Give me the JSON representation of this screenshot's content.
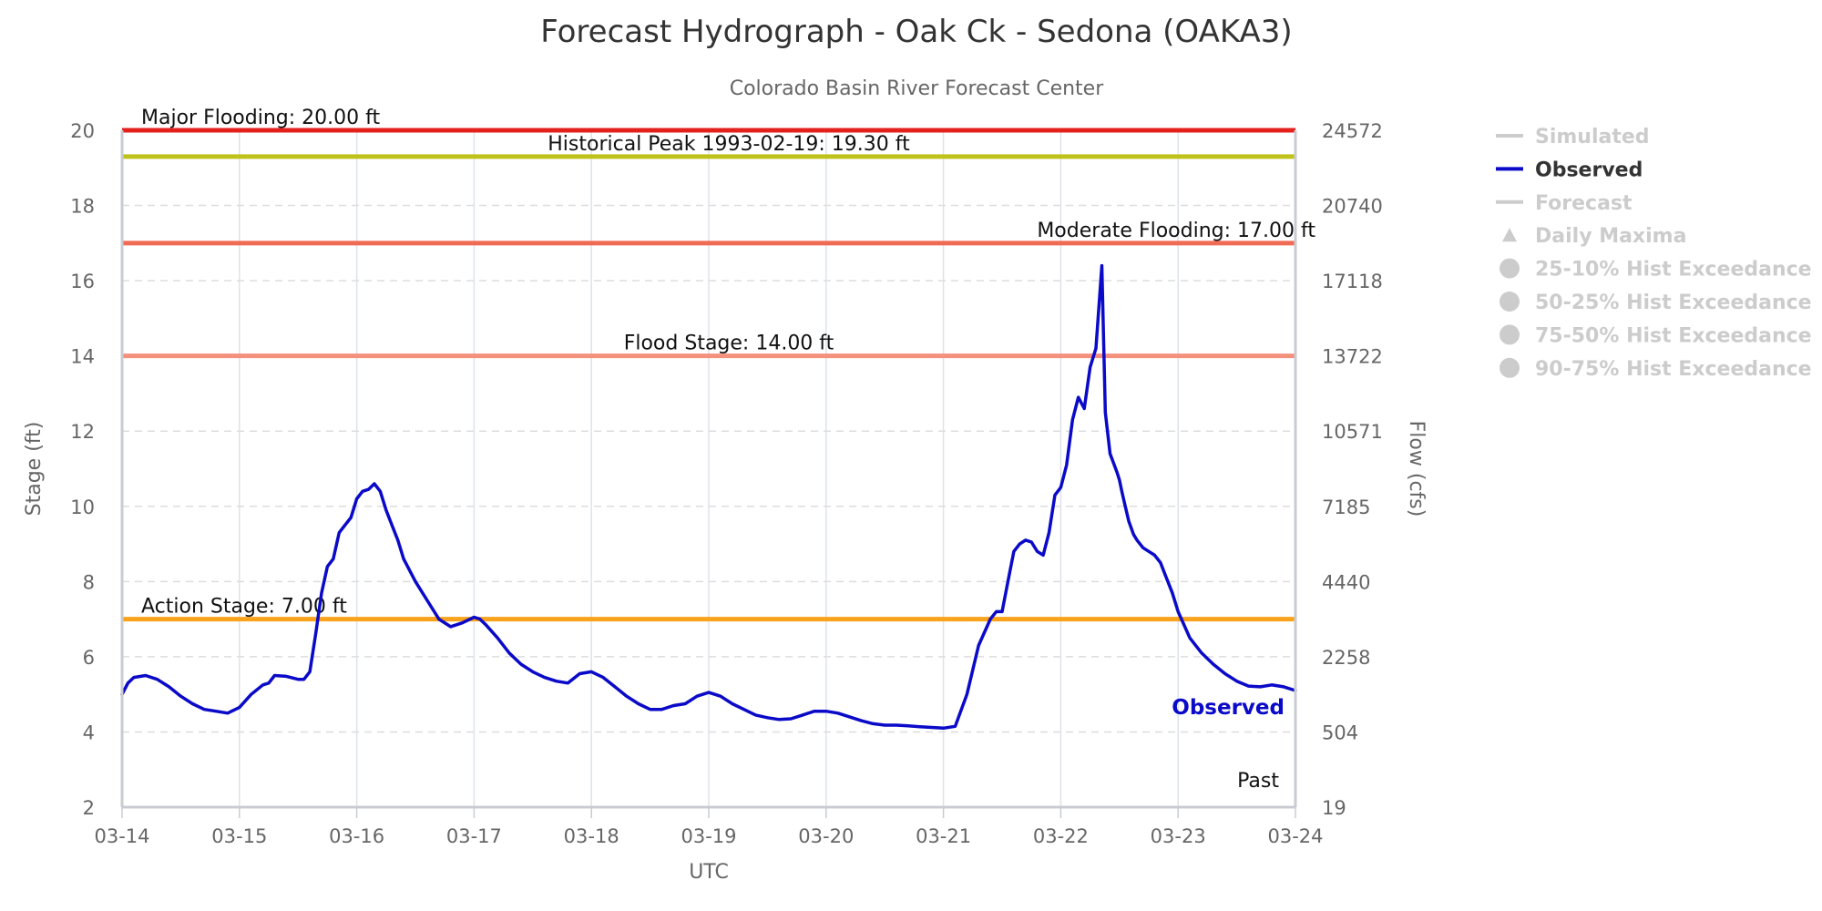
{
  "chart_data": {
    "type": "line",
    "title": "Forecast Hydrograph - Oak Ck - Sedona (OAKA3)",
    "subtitle": "Colorado Basin River Forecast Center",
    "xlabel": "UTC",
    "ylabel": "Stage (ft)",
    "y2label": "Flow (cfs)",
    "xlim": [
      "03-14",
      "03-24"
    ],
    "x_ticks": [
      "03-14",
      "03-15",
      "03-16",
      "03-17",
      "03-18",
      "03-19",
      "03-20",
      "03-21",
      "03-22",
      "03-23",
      "03-24"
    ],
    "ylim": [
      2,
      20
    ],
    "y_ticks": [
      2,
      4,
      6,
      8,
      10,
      12,
      14,
      16,
      18,
      20
    ],
    "y2_ticks": [
      {
        "stage": 2,
        "label": "19"
      },
      {
        "stage": 4,
        "label": "504"
      },
      {
        "stage": 6,
        "label": "2258"
      },
      {
        "stage": 8,
        "label": "4440"
      },
      {
        "stage": 10,
        "label": "7185"
      },
      {
        "stage": 12,
        "label": "10571"
      },
      {
        "stage": 14,
        "label": "13722"
      },
      {
        "stage": 16,
        "label": "17118"
      },
      {
        "stage": 18,
        "label": "20740"
      },
      {
        "stage": 20,
        "label": "24572"
      }
    ],
    "grid": true,
    "legend_position": "right",
    "thresholds": [
      {
        "label": "Major Flooding: 20.00 ft",
        "value": 20.0,
        "color": "#e3201c",
        "label_pos": "left"
      },
      {
        "label": "Historical Peak 1993-02-19: 19.30 ft",
        "value": 19.3,
        "color": "#bfc21b",
        "label_pos": "center"
      },
      {
        "label": "Moderate Flooding: 17.00 ft",
        "value": 17.0,
        "color": "#f06b55",
        "label_pos": "right"
      },
      {
        "label": "Flood Stage: 14.00 ft",
        "value": 14.0,
        "color": "#f4917d",
        "label_pos": "center"
      },
      {
        "label": "Action Stage: 7.00 ft",
        "value": 7.0,
        "color": "#f9a21b",
        "label_pos": "left"
      }
    ],
    "series": [
      {
        "name": "Observed",
        "color": "#0a0ac8",
        "x_days": [
          0,
          0.05,
          0.1,
          0.2,
          0.3,
          0.4,
          0.5,
          0.6,
          0.7,
          0.8,
          0.9,
          1.0,
          1.1,
          1.2,
          1.25,
          1.3,
          1.4,
          1.5,
          1.55,
          1.6,
          1.65,
          1.7,
          1.75,
          1.8,
          1.85,
          1.9,
          1.95,
          2.0,
          2.05,
          2.1,
          2.15,
          2.2,
          2.25,
          2.3,
          2.35,
          2.4,
          2.5,
          2.6,
          2.7,
          2.8,
          2.9,
          3.0,
          3.05,
          3.1,
          3.2,
          3.3,
          3.4,
          3.5,
          3.6,
          3.7,
          3.8,
          3.9,
          4.0,
          4.1,
          4.2,
          4.3,
          4.4,
          4.5,
          4.6,
          4.7,
          4.8,
          4.9,
          5.0,
          5.1,
          5.2,
          5.3,
          5.4,
          5.5,
          5.6,
          5.7,
          5.8,
          5.9,
          6.0,
          6.1,
          6.2,
          6.3,
          6.4,
          6.5,
          6.6,
          6.7,
          6.8,
          6.9,
          7.0,
          7.1,
          7.2,
          7.3,
          7.4,
          7.45,
          7.5,
          7.55,
          7.6,
          7.65,
          7.7,
          7.75,
          7.8,
          7.85,
          7.9,
          7.95,
          8.0,
          8.05,
          8.1,
          8.15,
          8.2,
          8.25,
          8.3,
          8.35,
          8.38,
          8.42,
          8.48,
          8.5,
          8.52,
          8.55,
          8.58,
          8.62,
          8.65,
          8.7,
          8.75,
          8.8,
          8.85,
          8.9,
          8.95,
          9.0,
          9.1,
          9.2,
          9.3,
          9.4,
          9.5,
          9.6,
          9.7,
          9.8,
          9.9,
          10.0
        ],
        "y": [
          5.0,
          5.3,
          5.45,
          5.5,
          5.4,
          5.2,
          4.95,
          4.75,
          4.6,
          4.55,
          4.5,
          4.65,
          5.0,
          5.25,
          5.3,
          5.5,
          5.48,
          5.4,
          5.4,
          5.6,
          6.6,
          7.7,
          8.4,
          8.6,
          9.3,
          9.5,
          9.7,
          10.2,
          10.4,
          10.45,
          10.6,
          10.4,
          9.9,
          9.5,
          9.1,
          8.6,
          8.0,
          7.5,
          7.0,
          6.8,
          6.9,
          7.05,
          7.0,
          6.85,
          6.5,
          6.1,
          5.8,
          5.6,
          5.45,
          5.35,
          5.3,
          5.55,
          5.6,
          5.45,
          5.2,
          4.95,
          4.75,
          4.6,
          4.6,
          4.7,
          4.75,
          4.95,
          5.05,
          4.95,
          4.75,
          4.6,
          4.45,
          4.38,
          4.33,
          4.35,
          4.45,
          4.55,
          4.55,
          4.5,
          4.4,
          4.3,
          4.22,
          4.18,
          4.18,
          4.16,
          4.14,
          4.12,
          4.1,
          4.15,
          5.0,
          6.3,
          7.0,
          7.2,
          7.2,
          8.0,
          8.8,
          9.0,
          9.1,
          9.05,
          8.8,
          8.7,
          9.3,
          10.3,
          10.5,
          11.1,
          12.3,
          12.9,
          12.6,
          13.7,
          14.2,
          16.4,
          12.5,
          11.4,
          10.9,
          10.7,
          10.4,
          10.0,
          9.6,
          9.25,
          9.1,
          8.9,
          8.8,
          8.7,
          8.5,
          8.1,
          7.7,
          7.2,
          6.5,
          6.1,
          5.8,
          5.55,
          5.35,
          5.22,
          5.2,
          5.25,
          5.2,
          5.1
        ]
      }
    ],
    "series_label": "Observed",
    "annotation": "Past",
    "legend": [
      {
        "label": "Simulated",
        "symbol": "line",
        "active": false,
        "color": "#cccccc"
      },
      {
        "label": "Observed",
        "symbol": "line",
        "active": true,
        "color": "#0a0ac8"
      },
      {
        "label": "Forecast",
        "symbol": "line",
        "active": false,
        "color": "#cccccc"
      },
      {
        "label": "Daily Maxima",
        "symbol": "triangle",
        "active": false,
        "color": "#cccccc"
      },
      {
        "label": "25-10% Hist Exceedance",
        "symbol": "circle",
        "active": false,
        "color": "#cccccc"
      },
      {
        "label": "50-25% Hist Exceedance",
        "symbol": "circle",
        "active": false,
        "color": "#cccccc"
      },
      {
        "label": "75-50% Hist Exceedance",
        "symbol": "circle",
        "active": false,
        "color": "#cccccc"
      },
      {
        "label": "90-75% Hist Exceedance",
        "symbol": "circle",
        "active": false,
        "color": "#cccccc"
      }
    ]
  }
}
